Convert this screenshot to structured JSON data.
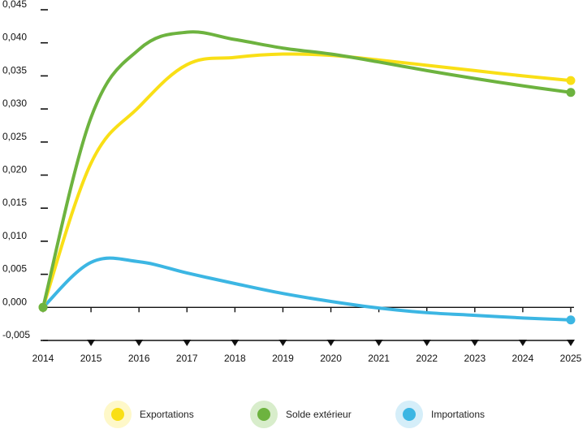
{
  "chart_data": {
    "type": "line",
    "x": [
      2014,
      2015,
      2016,
      2017,
      2018,
      2019,
      2020,
      2021,
      2022,
      2023,
      2024,
      2025
    ],
    "x_tick_labels": [
      "2014",
      "2015",
      "2016",
      "2017",
      "2018",
      "2019",
      "2020",
      "2021",
      "2022",
      "2023",
      "2024",
      "2025"
    ],
    "y_tick_values": [
      -0.005,
      0.0,
      0.005,
      0.01,
      0.015,
      0.02,
      0.025,
      0.03,
      0.035,
      0.04,
      0.045
    ],
    "y_tick_labels": [
      "-0,005",
      "0,000",
      "0,005",
      "0,010",
      "0,015",
      "0,020",
      "0,025",
      "0,030",
      "0,035",
      "0,040",
      "0,045"
    ],
    "ylim": [
      -0.005,
      0.045
    ],
    "xlim": [
      2014,
      2025
    ],
    "grid": false,
    "legend_position": "bottom",
    "series": [
      {
        "name": "Exportations",
        "color": "#F9DF16",
        "values": [
          0.0,
          0.0218,
          0.0303,
          0.0367,
          0.0378,
          0.0383,
          0.0381,
          0.0374,
          0.0366,
          0.0358,
          0.035,
          0.0343
        ]
      },
      {
        "name": "Solde extérieur",
        "color": "#6DB33F",
        "values": [
          0.0,
          0.0287,
          0.039,
          0.0416,
          0.0405,
          0.0392,
          0.0383,
          0.0371,
          0.0358,
          0.0346,
          0.0335,
          0.0325
        ]
      },
      {
        "name": "Importations",
        "color": "#3CB6E3",
        "values": [
          0.0,
          0.0068,
          0.0069,
          0.0052,
          0.0036,
          0.0021,
          0.0009,
          -0.0001,
          -0.0008,
          -0.0012,
          -0.0016,
          -0.0019
        ]
      }
    ]
  },
  "legend": {
    "items": [
      {
        "label": "Exportations",
        "color": "#F9DF16",
        "halo": "#FEF8C9"
      },
      {
        "label": "Solde extérieur",
        "color": "#6DB33F",
        "halo": "#D8EDCB"
      },
      {
        "label": "Importations",
        "color": "#3CB6E3",
        "halo": "#D5EEF9"
      }
    ]
  }
}
